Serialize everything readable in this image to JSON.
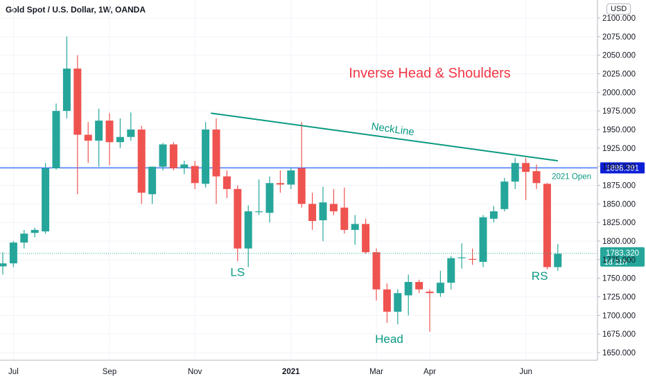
{
  "header": {
    "title": "Gold Spot / U.S. Dollar, 1W, OANDA",
    "currency": "USD"
  },
  "colors": {
    "up": "#26a69a",
    "down": "#ef5350",
    "neckline": "#089981",
    "hline": "#2962ff",
    "annotation_red": "#f23645",
    "annotation_green": "#089981",
    "grid": "#f0f3fa"
  },
  "chart_data": {
    "type": "candlestick",
    "ylim": [
      1635,
      2115
    ],
    "y_ticks": [
      1650,
      1675,
      1700,
      1725,
      1750,
      1775,
      1800,
      1825,
      1850,
      1875,
      1900,
      1925,
      1950,
      1975,
      2000,
      2025,
      2050,
      2075,
      2100
    ],
    "y_tick_labels": [
      "1650.000",
      "1675.000",
      "1700.000",
      "1725.000",
      "1750.000",
      "1775.000",
      "1800.000",
      "1825.000",
      "1850.000",
      "1875.000",
      "1900.000",
      "1925.000",
      "1950.000",
      "1975.000",
      "2000.000",
      "2025.000",
      "2050.000",
      "2075.000",
      "2100.000"
    ],
    "x_labels": [
      {
        "text": "Jul",
        "index": 1
      },
      {
        "text": "Sep",
        "index": 10
      },
      {
        "text": "Nov",
        "index": 18
      },
      {
        "text": "2021",
        "index": 27,
        "bold": true
      },
      {
        "text": "Mar",
        "index": 35
      },
      {
        "text": "Apr",
        "index": 40
      },
      {
        "text": "Jun",
        "index": 49
      }
    ],
    "candles": [
      {
        "o": 1766,
        "h": 1785,
        "l": 1755,
        "c": 1770
      },
      {
        "o": 1770,
        "h": 1800,
        "l": 1765,
        "c": 1798
      },
      {
        "o": 1798,
        "h": 1815,
        "l": 1790,
        "c": 1810
      },
      {
        "o": 1811,
        "h": 1818,
        "l": 1805,
        "c": 1815
      },
      {
        "o": 1813,
        "h": 1905,
        "l": 1810,
        "c": 1898
      },
      {
        "o": 1898,
        "h": 1985,
        "l": 1896,
        "c": 1975
      },
      {
        "o": 1975,
        "h": 2075,
        "l": 1965,
        "c": 2032
      },
      {
        "o": 2032,
        "h": 2050,
        "l": 1863,
        "c": 1943
      },
      {
        "o": 1943,
        "h": 1960,
        "l": 1905,
        "c": 1935
      },
      {
        "o": 1935,
        "h": 1978,
        "l": 1900,
        "c": 1962
      },
      {
        "o": 1962,
        "h": 1972,
        "l": 1902,
        "c": 1933
      },
      {
        "o": 1933,
        "h": 1965,
        "l": 1925,
        "c": 1940
      },
      {
        "o": 1940,
        "h": 1973,
        "l": 1935,
        "c": 1950
      },
      {
        "o": 1950,
        "h": 1955,
        "l": 1850,
        "c": 1865
      },
      {
        "o": 1863,
        "h": 1900,
        "l": 1850,
        "c": 1900
      },
      {
        "o": 1900,
        "h": 1932,
        "l": 1895,
        "c": 1930
      },
      {
        "o": 1930,
        "h": 1933,
        "l": 1895,
        "c": 1898
      },
      {
        "o": 1898,
        "h": 1908,
        "l": 1890,
        "c": 1903
      },
      {
        "o": 1901,
        "h": 1908,
        "l": 1870,
        "c": 1878
      },
      {
        "o": 1877,
        "h": 1960,
        "l": 1872,
        "c": 1950
      },
      {
        "o": 1950,
        "h": 1965,
        "l": 1850,
        "c": 1887
      },
      {
        "o": 1887,
        "h": 1895,
        "l": 1858,
        "c": 1870
      },
      {
        "o": 1870,
        "h": 1875,
        "l": 1773,
        "c": 1790
      },
      {
        "o": 1790,
        "h": 1848,
        "l": 1765,
        "c": 1840
      },
      {
        "o": 1840,
        "h": 1883,
        "l": 1835,
        "c": 1840
      },
      {
        "o": 1838,
        "h": 1887,
        "l": 1825,
        "c": 1878
      },
      {
        "o": 1878,
        "h": 1895,
        "l": 1865,
        "c": 1876
      },
      {
        "o": 1876,
        "h": 1899,
        "l": 1870,
        "c": 1895
      },
      {
        "o": 1898,
        "h": 1960,
        "l": 1845,
        "c": 1850
      },
      {
        "o": 1850,
        "h": 1865,
        "l": 1815,
        "c": 1827
      },
      {
        "o": 1828,
        "h": 1873,
        "l": 1800,
        "c": 1852
      },
      {
        "o": 1850,
        "h": 1870,
        "l": 1835,
        "c": 1840
      },
      {
        "o": 1845,
        "h": 1872,
        "l": 1810,
        "c": 1815
      },
      {
        "o": 1815,
        "h": 1835,
        "l": 1795,
        "c": 1823
      },
      {
        "o": 1823,
        "h": 1830,
        "l": 1783,
        "c": 1785
      },
      {
        "o": 1785,
        "h": 1790,
        "l": 1720,
        "c": 1735
      },
      {
        "o": 1735,
        "h": 1743,
        "l": 1690,
        "c": 1705
      },
      {
        "o": 1705,
        "h": 1735,
        "l": 1688,
        "c": 1730
      },
      {
        "o": 1727,
        "h": 1755,
        "l": 1700,
        "c": 1745
      },
      {
        "o": 1745,
        "h": 1748,
        "l": 1730,
        "c": 1735
      },
      {
        "o": 1732,
        "h": 1735,
        "l": 1678,
        "c": 1730
      },
      {
        "o": 1730,
        "h": 1760,
        "l": 1725,
        "c": 1744
      },
      {
        "o": 1744,
        "h": 1780,
        "l": 1735,
        "c": 1777
      },
      {
        "o": 1777,
        "h": 1797,
        "l": 1763,
        "c": 1778
      },
      {
        "o": 1776,
        "h": 1790,
        "l": 1768,
        "c": 1775
      },
      {
        "o": 1772,
        "h": 1835,
        "l": 1765,
        "c": 1832
      },
      {
        "o": 1830,
        "h": 1847,
        "l": 1825,
        "c": 1840
      },
      {
        "o": 1843,
        "h": 1885,
        "l": 1840,
        "c": 1880
      },
      {
        "o": 1880,
        "h": 1912,
        "l": 1870,
        "c": 1905
      },
      {
        "o": 1905,
        "h": 1912,
        "l": 1855,
        "c": 1893
      },
      {
        "o": 1894,
        "h": 1903,
        "l": 1870,
        "c": 1878
      },
      {
        "o": 1877,
        "h": 1878,
        "l": 1762,
        "c": 1765
      },
      {
        "o": 1765,
        "h": 1796,
        "l": 1760,
        "c": 1783
      }
    ],
    "neckline": {
      "label": "NeckLine",
      "from": {
        "index": 19.5,
        "price": 1972
      },
      "to": {
        "index": 52,
        "price": 1908
      }
    },
    "horizontal_line": {
      "price": 1898.391,
      "label": "1898.391",
      "note": "2021 Open"
    },
    "last_price": {
      "price": 1783.32,
      "label": "1783.320",
      "countdown": "1d 11h"
    },
    "annotations": [
      {
        "text": "Inverse Head & Shoulders",
        "index": 40,
        "price": 2020,
        "color_key": "annotation_red",
        "size": 20
      },
      {
        "text": "LS",
        "index": 22,
        "price": 1753,
        "color_key": "annotation_green",
        "size": 17
      },
      {
        "text": "Head",
        "index": 36.2,
        "price": 1663,
        "color_key": "annotation_green",
        "size": 17
      },
      {
        "text": "RS",
        "index": 50.3,
        "price": 1748,
        "color_key": "annotation_green",
        "size": 17
      }
    ]
  }
}
